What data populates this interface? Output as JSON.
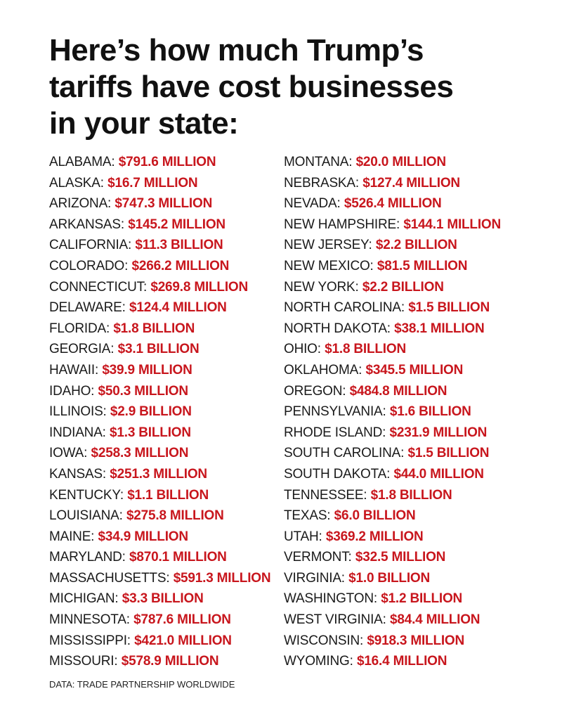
{
  "headline": {
    "line1": "Here’s how much Trump’s",
    "line2": "tariffs have cost businesses",
    "line3": "in your state:"
  },
  "colors": {
    "amount": "#c8161d",
    "text": "#111111"
  },
  "columns": {
    "left": [
      {
        "state": "ALABAMA:",
        "amount": "$791.6 MILLION"
      },
      {
        "state": "ALASKA:",
        "amount": "$16.7 MILLION"
      },
      {
        "state": "ARIZONA:",
        "amount": "$747.3 MILLION"
      },
      {
        "state": "ARKANSAS:",
        "amount": "$145.2 MILLION"
      },
      {
        "state": "CALIFORNIA:",
        "amount": "$11.3 BILLION"
      },
      {
        "state": "COLORADO:",
        "amount": "$266.2 MILLION"
      },
      {
        "state": "CONNECTICUT:",
        "amount": "$269.8 MILLION"
      },
      {
        "state": "DELAWARE:",
        "amount": "$124.4 MILLION"
      },
      {
        "state": "FLORIDA:",
        "amount": "$1.8 BILLION"
      },
      {
        "state": "GEORGIA:",
        "amount": "$3.1 BILLION"
      },
      {
        "state": "HAWAII:",
        "amount": "$39.9 MILLION"
      },
      {
        "state": "IDAHO:",
        "amount": "$50.3 MILLION"
      },
      {
        "state": "ILLINOIS:",
        "amount": "$2.9 BILLION"
      },
      {
        "state": "INDIANA:",
        "amount": "$1.3 BILLION"
      },
      {
        "state": "IOWA:",
        "amount": "$258.3 MILLION"
      },
      {
        "state": "KANSAS:",
        "amount": "$251.3 MILLION"
      },
      {
        "state": "KENTUCKY:",
        "amount": "$1.1 BILLION"
      },
      {
        "state": "LOUISIANA:",
        "amount": "$275.8 MILLION"
      },
      {
        "state": "MAINE:",
        "amount": "$34.9 MILLION"
      },
      {
        "state": "MARYLAND:",
        "amount": "$870.1 MILLION"
      },
      {
        "state": "MASSACHUSETTS:",
        "amount": "$591.3 MILLION"
      },
      {
        "state": "MICHIGAN:",
        "amount": "$3.3 BILLION"
      },
      {
        "state": "MINNESOTA:",
        "amount": "$787.6 MILLION"
      },
      {
        "state": "MISSISSIPPI:",
        "amount": "$421.0 MILLION"
      },
      {
        "state": "MISSOURI:",
        "amount": "$578.9 MILLION"
      }
    ],
    "right": [
      {
        "state": "MONTANA:",
        "amount": "$20.0 MILLION"
      },
      {
        "state": "NEBRASKA:",
        "amount": "$127.4 MILLION"
      },
      {
        "state": "NEVADA:",
        "amount": "$526.4 MILLION"
      },
      {
        "state": "NEW HAMPSHIRE:",
        "amount": "$144.1 MILLION"
      },
      {
        "state": "NEW JERSEY:",
        "amount": "$2.2 BILLION"
      },
      {
        "state": "NEW MEXICO:",
        "amount": "$81.5 MILLION"
      },
      {
        "state": "NEW YORK:",
        "amount": "$2.2 BILLION"
      },
      {
        "state": "NORTH CAROLINA:",
        "amount": "$1.5 BILLION"
      },
      {
        "state": "NORTH DAKOTA:",
        "amount": "$38.1 MILLION"
      },
      {
        "state": "OHIO:",
        "amount": "$1.8 BILLION"
      },
      {
        "state": "OKLAHOMA:",
        "amount": "$345.5 MILLION"
      },
      {
        "state": "OREGON:",
        "amount": "$484.8 MILLION"
      },
      {
        "state": "PENNSYLVANIA:",
        "amount": "$1.6 BILLION"
      },
      {
        "state": "RHODE ISLAND:",
        "amount": "$231.9 MILLION"
      },
      {
        "state": "SOUTH CAROLINA:",
        "amount": "$1.5 BILLION"
      },
      {
        "state": "SOUTH DAKOTA:",
        "amount": "$44.0 MILLION"
      },
      {
        "state": "TENNESSEE:",
        "amount": "$1.8 BILLION"
      },
      {
        "state": "TEXAS:",
        "amount": "$6.0 BILLION"
      },
      {
        "state": "UTAH:",
        "amount": "$369.2 MILLION"
      },
      {
        "state": "VERMONT:",
        "amount": "$32.5 MILLION"
      },
      {
        "state": "VIRGINIA:",
        "amount": "$1.0 BILLION"
      },
      {
        "state": "WASHINGTON:",
        "amount": "$1.2 BILLION"
      },
      {
        "state": "WEST VIRGINIA:",
        "amount": "$84.4 MILLION"
      },
      {
        "state": "WISCONSIN:",
        "amount": "$918.3 MILLION"
      },
      {
        "state": "WYOMING:",
        "amount": "$16.4 MILLION"
      }
    ]
  },
  "source": "DATA: TRADE PARTNERSHIP WORLDWIDE"
}
